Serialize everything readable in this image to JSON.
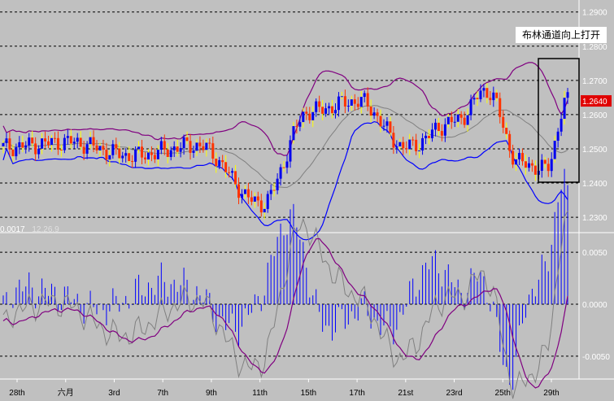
{
  "chart_data": [
    {
      "type": "candlestick",
      "title": "",
      "annotation": "布林通道向上打开",
      "last_price_label": "1.2640",
      "y_ticks": [
        "1.2900",
        "1.2800",
        "1.2700",
        "1.2600",
        "1.2500",
        "1.2400",
        "1.2300"
      ],
      "ylim": [
        1.2255,
        1.2935
      ],
      "x_labels": [
        "28th",
        "六月",
        "3rd",
        "7th",
        "9th",
        "11th",
        "15th",
        "17th",
        "21st",
        "23rd",
        "25th",
        "29th"
      ],
      "overlays": [
        "Bollinger upper",
        "Bollinger middle",
        "Bollinger lower"
      ],
      "colors": {
        "up": "#0000ee",
        "down": "#ff3300",
        "upper_band": "#800080",
        "middle_band": "#808080",
        "lower_band": "#0000ff",
        "price_tag": "#e00000",
        "highlight": "#000000"
      }
    },
    {
      "type": "macd",
      "header_value": "0.0017",
      "params": "12,26,9",
      "y_ticks": [
        "0.0050",
        "0.0000",
        "-0.0050"
      ],
      "ylim": [
        -0.0072,
        0.0065
      ],
      "colors": {
        "histogram": "#0000ff",
        "macd": "#808080",
        "signal": "#800080"
      }
    }
  ]
}
